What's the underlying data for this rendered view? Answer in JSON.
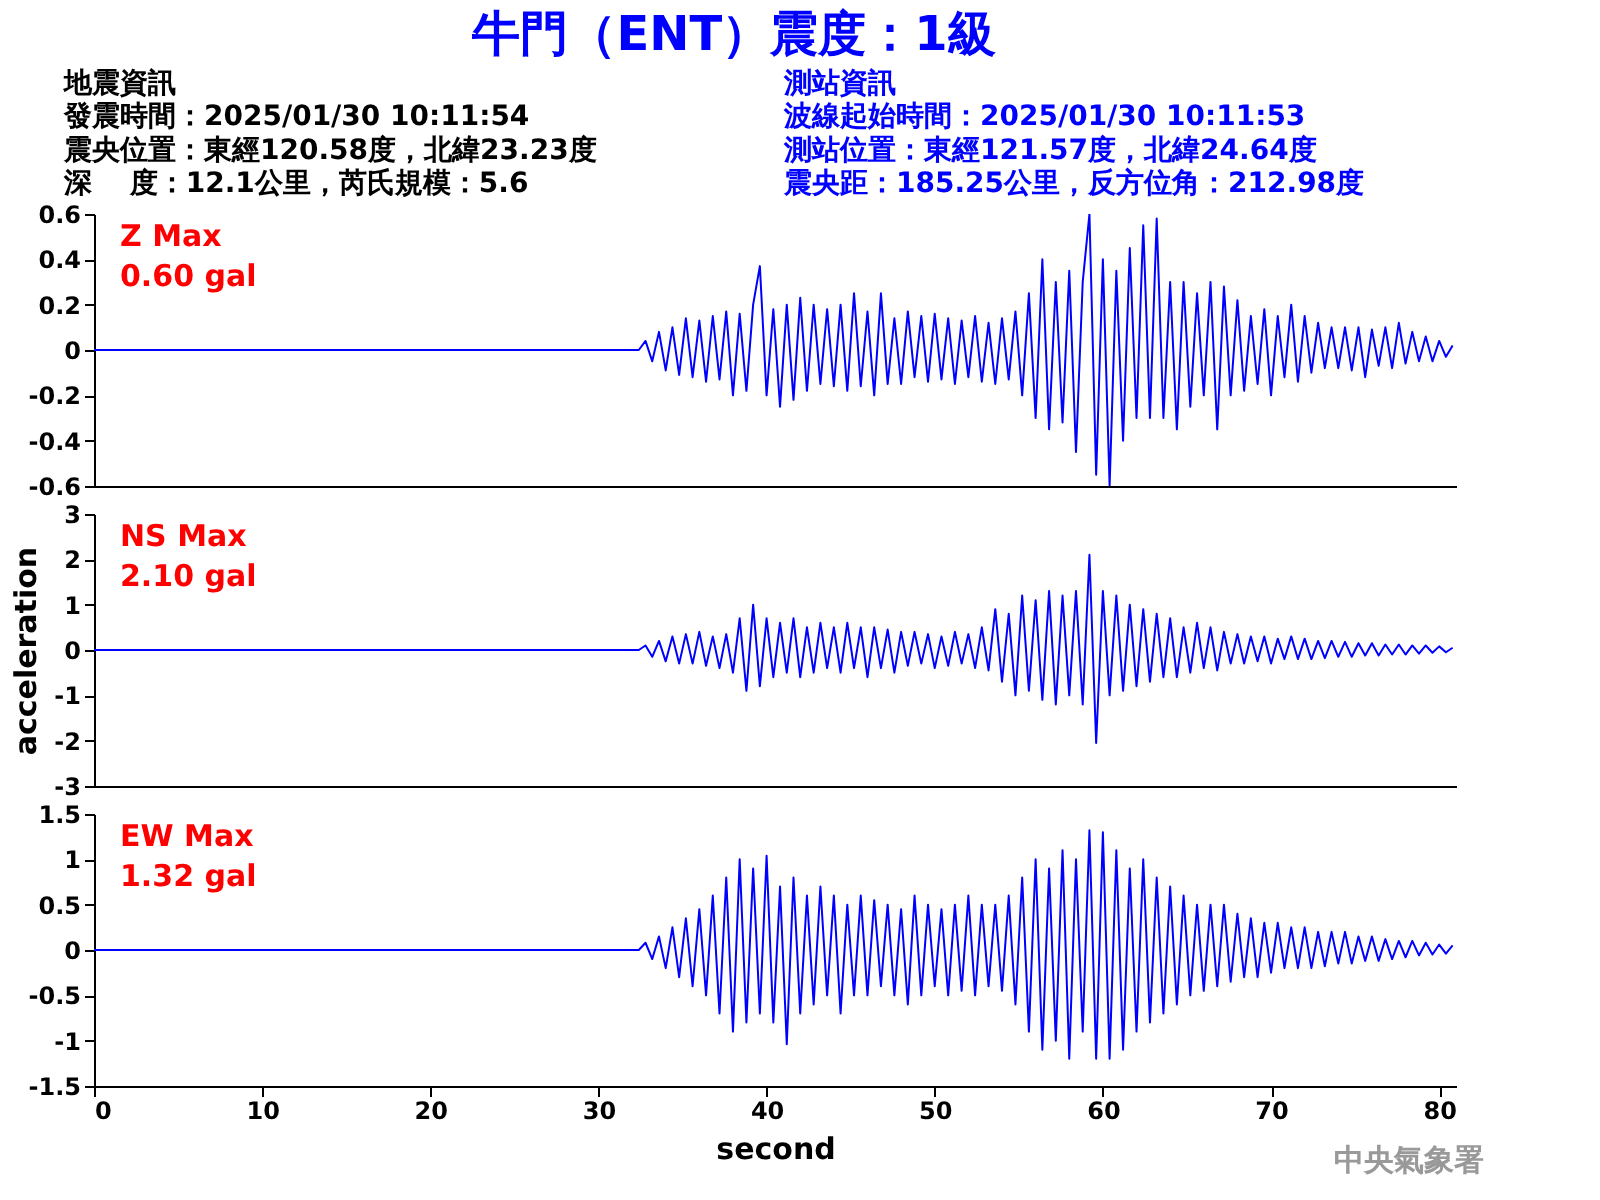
{
  "chart_data": [
    {
      "type": "line",
      "title": "牛門（ENT）震度：1級",
      "annotations": [
        "Z Max",
        "0.60 gal",
        "地震資訊",
        "發震時間：2025/01/30 10:11:54",
        "震央位置：東經120.58度，北緯23.23度",
        "深　 度：12.1公里，芮氏規模：5.6",
        "測站資訊",
        "波線起始時間：2025/01/30 10:11:53",
        "測站位置：東經121.57度，北緯24.64度",
        "震央距：185.25公里，反方位角：212.98度"
      ],
      "x": [
        0,
        32.4,
        32.8,
        33.2,
        33.6,
        34.0,
        34.4,
        34.8,
        35.2,
        35.6,
        36.0,
        36.4,
        36.8,
        37.2,
        37.6,
        38.0,
        38.4,
        38.8,
        39.2,
        39.6,
        40.0,
        40.4,
        40.8,
        41.2,
        41.6,
        42.0,
        42.4,
        42.8,
        43.2,
        43.6,
        44.0,
        44.4,
        44.8,
        45.2,
        45.6,
        46.0,
        46.4,
        46.8,
        47.2,
        47.6,
        48.0,
        48.4,
        48.8,
        49.2,
        49.6,
        50.0,
        50.4,
        50.8,
        51.2,
        51.6,
        52.0,
        52.4,
        52.8,
        53.2,
        53.6,
        54.0,
        54.4,
        54.8,
        55.2,
        55.6,
        56.0,
        56.4,
        56.8,
        57.2,
        57.6,
        58.0,
        58.4,
        58.8,
        59.2,
        59.6,
        60.0,
        60.4,
        60.8,
        61.2,
        61.6,
        62.0,
        62.4,
        62.8,
        63.2,
        63.6,
        64.0,
        64.4,
        64.8,
        65.2,
        65.6,
        66.0,
        66.4,
        66.8,
        67.2,
        67.6,
        68.0,
        68.4,
        68.8,
        69.2,
        69.6,
        70.0,
        70.4,
        70.8,
        71.2,
        71.6,
        72.0,
        72.4,
        72.8,
        73.2,
        73.6,
        74.0,
        74.4,
        74.8,
        75.2,
        75.6,
        76.0,
        76.4,
        76.8,
        77.2,
        77.6,
        78.0,
        78.4,
        78.8,
        79.2,
        79.6,
        80.0,
        80.4,
        80.8
      ],
      "series": [
        {
          "color": "#0000ff",
          "values": [
            0,
            0,
            0.04,
            -0.05,
            0.08,
            -0.09,
            0.1,
            -0.11,
            0.14,
            -0.12,
            0.13,
            -0.14,
            0.15,
            -0.13,
            0.17,
            -0.2,
            0.16,
            -0.18,
            0.2,
            0.37,
            -0.2,
            0.18,
            -0.25,
            0.2,
            -0.22,
            0.23,
            -0.18,
            0.2,
            -0.15,
            0.18,
            -0.16,
            0.2,
            -0.18,
            0.25,
            -0.16,
            0.17,
            -0.2,
            0.25,
            -0.15,
            0.14,
            -0.15,
            0.17,
            -0.12,
            0.15,
            -0.14,
            0.16,
            -0.13,
            0.14,
            -0.15,
            0.13,
            -0.12,
            0.15,
            -0.14,
            0.12,
            -0.15,
            0.14,
            -0.13,
            0.17,
            -0.2,
            0.25,
            -0.3,
            0.4,
            -0.35,
            0.3,
            -0.32,
            0.35,
            -0.45,
            0.3,
            0.6,
            -0.55,
            0.4,
            -0.6,
            0.35,
            -0.4,
            0.45,
            -0.3,
            0.55,
            -0.3,
            0.58,
            -0.3,
            0.3,
            -0.35,
            0.3,
            -0.25,
            0.25,
            -0.2,
            0.3,
            -0.35,
            0.28,
            -0.2,
            0.22,
            -0.18,
            0.15,
            -0.15,
            0.18,
            -0.2,
            0.15,
            -0.12,
            0.2,
            -0.14,
            0.15,
            -0.1,
            0.12,
            -0.08,
            0.1,
            -0.08,
            0.1,
            -0.09,
            0.1,
            -0.12,
            0.09,
            -0.07,
            0.1,
            -0.08,
            0.12,
            -0.06,
            0.08,
            -0.05,
            0.06,
            -0.05,
            0.04,
            -0.03,
            0.02
          ]
        }
      ],
      "xlim": [
        0,
        81
      ],
      "ylim": [
        -0.6,
        0.6
      ],
      "yticks": [
        -0.6,
        -0.4,
        -0.2,
        0,
        0.2,
        0.4,
        0.6
      ],
      "tick_labels": "y"
    },
    {
      "type": "line",
      "ylabel": "acceleration",
      "annotations": [
        "NS Max",
        "2.10 gal"
      ],
      "x": [
        0,
        32.4,
        32.8,
        33.2,
        33.6,
        34.0,
        34.4,
        34.8,
        35.2,
        35.6,
        36.0,
        36.4,
        36.8,
        37.2,
        37.6,
        38.0,
        38.4,
        38.8,
        39.2,
        39.6,
        40.0,
        40.4,
        40.8,
        41.2,
        41.6,
        42.0,
        42.4,
        42.8,
        43.2,
        43.6,
        44.0,
        44.4,
        44.8,
        45.2,
        45.6,
        46.0,
        46.4,
        46.8,
        47.2,
        47.6,
        48.0,
        48.4,
        48.8,
        49.2,
        49.6,
        50.0,
        50.4,
        50.8,
        51.2,
        51.6,
        52.0,
        52.4,
        52.8,
        53.2,
        53.6,
        54.0,
        54.4,
        54.8,
        55.2,
        55.6,
        56.0,
        56.4,
        56.8,
        57.2,
        57.6,
        58.0,
        58.4,
        58.8,
        59.2,
        59.6,
        60.0,
        60.4,
        60.8,
        61.2,
        61.6,
        62.0,
        62.4,
        62.8,
        63.2,
        63.6,
        64.0,
        64.4,
        64.8,
        65.2,
        65.6,
        66.0,
        66.4,
        66.8,
        67.2,
        67.6,
        68.0,
        68.4,
        68.8,
        69.2,
        69.6,
        70.0,
        70.4,
        70.8,
        71.2,
        71.6,
        72.0,
        72.4,
        72.8,
        73.2,
        73.6,
        74.0,
        74.4,
        74.8,
        75.2,
        75.6,
        76.0,
        76.4,
        76.8,
        77.2,
        77.6,
        78.0,
        78.4,
        78.8,
        79.2,
        79.6,
        80.0,
        80.4,
        80.8
      ],
      "series": [
        {
          "color": "#0000ff",
          "values": [
            0,
            0,
            0.1,
            -0.15,
            0.2,
            -0.25,
            0.3,
            -0.3,
            0.35,
            -0.3,
            0.4,
            -0.35,
            0.3,
            -0.4,
            0.35,
            -0.5,
            0.7,
            -0.9,
            1.0,
            -0.8,
            0.7,
            -0.6,
            0.6,
            -0.5,
            0.7,
            -0.6,
            0.5,
            -0.5,
            0.6,
            -0.4,
            0.5,
            -0.5,
            0.6,
            -0.4,
            0.5,
            -0.6,
            0.5,
            -0.4,
            0.45,
            -0.5,
            0.4,
            -0.35,
            0.4,
            -0.3,
            0.35,
            -0.4,
            0.3,
            -0.35,
            0.4,
            -0.3,
            0.35,
            -0.4,
            0.5,
            -0.45,
            0.9,
            -0.7,
            0.8,
            -1.0,
            1.2,
            -0.9,
            1.1,
            -1.1,
            1.3,
            -1.2,
            1.2,
            -1.0,
            1.3,
            -1.2,
            2.1,
            -2.05,
            1.3,
            -1.0,
            1.2,
            -0.9,
            1.0,
            -0.8,
            0.9,
            -0.7,
            0.8,
            -0.6,
            0.7,
            -0.6,
            0.5,
            -0.5,
            0.6,
            -0.4,
            0.5,
            -0.45,
            0.4,
            -0.3,
            0.35,
            -0.3,
            0.3,
            -0.25,
            0.3,
            -0.3,
            0.25,
            -0.2,
            0.3,
            -0.2,
            0.25,
            -0.2,
            0.2,
            -0.18,
            0.2,
            -0.15,
            0.18,
            -0.15,
            0.15,
            -0.12,
            0.15,
            -0.12,
            0.12,
            -0.1,
            0.12,
            -0.1,
            0.1,
            -0.08,
            0.1,
            -0.06,
            0.08,
            -0.05,
            0.05
          ]
        }
      ],
      "xlim": [
        0,
        81
      ],
      "ylim": [
        -3,
        3
      ],
      "yticks": [
        -3,
        -2,
        -1,
        0,
        1,
        2,
        3
      ],
      "tick_labels": "y"
    },
    {
      "type": "line",
      "xlabel": "second",
      "annotations": [
        "EW Max",
        "1.32 gal",
        "中央氣象署"
      ],
      "x": [
        0,
        32.4,
        32.8,
        33.2,
        33.6,
        34.0,
        34.4,
        34.8,
        35.2,
        35.6,
        36.0,
        36.4,
        36.8,
        37.2,
        37.6,
        38.0,
        38.4,
        38.8,
        39.2,
        39.6,
        40.0,
        40.4,
        40.8,
        41.2,
        41.6,
        42.0,
        42.4,
        42.8,
        43.2,
        43.6,
        44.0,
        44.4,
        44.8,
        45.2,
        45.6,
        46.0,
        46.4,
        46.8,
        47.2,
        47.6,
        48.0,
        48.4,
        48.8,
        49.2,
        49.6,
        50.0,
        50.4,
        50.8,
        51.2,
        51.6,
        52.0,
        52.4,
        52.8,
        53.2,
        53.6,
        54.0,
        54.4,
        54.8,
        55.2,
        55.6,
        56.0,
        56.4,
        56.8,
        57.2,
        57.6,
        58.0,
        58.4,
        58.8,
        59.2,
        59.6,
        60.0,
        60.4,
        60.8,
        61.2,
        61.6,
        62.0,
        62.4,
        62.8,
        63.2,
        63.6,
        64.0,
        64.4,
        64.8,
        65.2,
        65.6,
        66.0,
        66.4,
        66.8,
        67.2,
        67.6,
        68.0,
        68.4,
        68.8,
        69.2,
        69.6,
        70.0,
        70.4,
        70.8,
        71.2,
        71.6,
        72.0,
        72.4,
        72.8,
        73.2,
        73.6,
        74.0,
        74.4,
        74.8,
        75.2,
        75.6,
        76.0,
        76.4,
        76.8,
        77.2,
        77.6,
        78.0,
        78.4,
        78.8,
        79.2,
        79.6,
        80.0,
        80.4,
        80.8
      ],
      "series": [
        {
          "color": "#0000ff",
          "values": [
            0,
            0,
            0.08,
            -0.1,
            0.15,
            -0.2,
            0.25,
            -0.3,
            0.35,
            -0.4,
            0.45,
            -0.5,
            0.6,
            -0.7,
            0.8,
            -0.9,
            1.0,
            -0.8,
            0.9,
            -0.7,
            1.04,
            -0.8,
            0.7,
            -1.04,
            0.8,
            -0.7,
            0.6,
            -0.6,
            0.7,
            -0.5,
            0.6,
            -0.7,
            0.5,
            -0.5,
            0.6,
            -0.5,
            0.55,
            -0.4,
            0.5,
            -0.5,
            0.45,
            -0.6,
            0.6,
            -0.5,
            0.5,
            -0.4,
            0.45,
            -0.5,
            0.5,
            -0.45,
            0.6,
            -0.5,
            0.5,
            -0.4,
            0.5,
            -0.45,
            0.6,
            -0.6,
            0.8,
            -0.9,
            1.0,
            -1.1,
            0.9,
            -1.0,
            1.1,
            -1.2,
            1.0,
            -0.9,
            1.32,
            -1.2,
            1.3,
            -1.2,
            1.1,
            -1.1,
            0.9,
            -0.9,
            1.0,
            -0.8,
            0.8,
            -0.7,
            0.7,
            -0.6,
            0.6,
            -0.5,
            0.5,
            -0.45,
            0.5,
            -0.4,
            0.5,
            -0.35,
            0.4,
            -0.3,
            0.35,
            -0.3,
            0.3,
            -0.25,
            0.3,
            -0.2,
            0.25,
            -0.2,
            0.25,
            -0.2,
            0.2,
            -0.18,
            0.2,
            -0.15,
            0.2,
            -0.15,
            0.15,
            -0.12,
            0.15,
            -0.12,
            0.12,
            -0.1,
            0.1,
            -0.08,
            0.1,
            -0.06,
            0.08,
            -0.05,
            0.06,
            -0.04,
            0.05
          ]
        }
      ],
      "xlim": [
        0,
        81
      ],
      "xticks": [
        0,
        10,
        20,
        30,
        40,
        50,
        60,
        70,
        80
      ],
      "ylim": [
        -1.5,
        1.5
      ],
      "yticks": [
        -1.5,
        -1,
        -0.5,
        0,
        0.5,
        1,
        1.5
      ]
    }
  ]
}
